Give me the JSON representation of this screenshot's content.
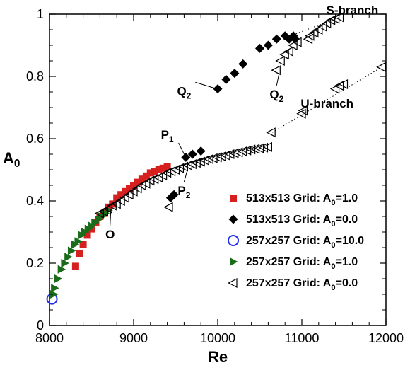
{
  "chart_data": {
    "type": "scatter",
    "title": "",
    "xlabel": "Re",
    "ylabel_main": "A",
    "ylabel_sub": "0",
    "xlim": [
      8000,
      12000
    ],
    "ylim": [
      0,
      1
    ],
    "x_ticks": [
      8000,
      9000,
      10000,
      11000,
      12000
    ],
    "x_tick_labels": [
      "8000",
      "9000",
      "10000",
      "11000",
      "12000"
    ],
    "y_ticks": [
      0,
      0.2,
      0.4,
      0.6,
      0.8,
      1.0
    ],
    "y_tick_labels": [
      "0",
      "0.2",
      "0.4",
      "0.6",
      "0.8",
      "1"
    ],
    "grid": false,
    "legend_position": "bottom-right",
    "series": [
      {
        "name_main": "513x513 Grid: A",
        "name_sub": "0",
        "name_tail": "=1.0",
        "marker": "square",
        "color": "#d62020",
        "points": [
          [
            8310,
            0.19
          ],
          [
            8360,
            0.23
          ],
          [
            8400,
            0.26
          ],
          [
            8450,
            0.29
          ],
          [
            8500,
            0.31
          ],
          [
            8550,
            0.33
          ],
          [
            8600,
            0.35
          ],
          [
            8650,
            0.36
          ],
          [
            8700,
            0.38
          ],
          [
            8750,
            0.39
          ],
          [
            8800,
            0.41
          ],
          [
            8850,
            0.42
          ],
          [
            8900,
            0.43
          ],
          [
            8950,
            0.44
          ],
          [
            9000,
            0.45
          ],
          [
            9050,
            0.46
          ],
          [
            9100,
            0.47
          ],
          [
            9150,
            0.48
          ],
          [
            9200,
            0.49
          ],
          [
            9250,
            0.495
          ],
          [
            9300,
            0.5
          ],
          [
            9350,
            0.505
          ],
          [
            9400,
            0.51
          ]
        ]
      },
      {
        "name_main": "513x513 Grid: A",
        "name_sub": "0",
        "name_tail": "=0.0",
        "marker": "diamond",
        "color": "#000000",
        "points": [
          [
            9440,
            0.41
          ],
          [
            9480,
            0.42
          ],
          [
            9620,
            0.54
          ],
          [
            9700,
            0.55
          ],
          [
            9800,
            0.56
          ],
          [
            10000,
            0.76
          ],
          [
            10100,
            0.79
          ],
          [
            10200,
            0.81
          ],
          [
            10300,
            0.84
          ],
          [
            10500,
            0.89
          ],
          [
            10600,
            0.9
          ],
          [
            10700,
            0.92
          ],
          [
            10800,
            0.93
          ],
          [
            10850,
            0.92
          ],
          [
            10900,
            0.93
          ],
          [
            10920,
            0.92
          ]
        ]
      },
      {
        "name_main": "257x257 Grid: A",
        "name_sub": "0",
        "name_tail": "=10.0",
        "marker": "circle",
        "color": "#1f2ee8",
        "points": [
          [
            8030,
            0.085
          ]
        ]
      },
      {
        "name_main": "257x257 Grid: A",
        "name_sub": "0",
        "name_tail": "=1.0",
        "marker": "triangle-right",
        "color": "#1a6b1a",
        "points": [
          [
            8050,
            0.1
          ],
          [
            8060,
            0.12
          ],
          [
            8100,
            0.15
          ],
          [
            8140,
            0.18
          ],
          [
            8180,
            0.2
          ],
          [
            8220,
            0.22
          ],
          [
            8260,
            0.24
          ],
          [
            8300,
            0.26
          ],
          [
            8340,
            0.27
          ],
          [
            8380,
            0.29
          ],
          [
            8420,
            0.3
          ],
          [
            8460,
            0.31
          ],
          [
            8500,
            0.32
          ],
          [
            8540,
            0.33
          ],
          [
            8580,
            0.34
          ],
          [
            8620,
            0.35
          ],
          [
            8660,
            0.36
          ],
          [
            8700,
            0.37
          ]
        ]
      },
      {
        "name_main": "257x257 Grid: A",
        "name_sub": "0",
        "name_tail": "=0.0",
        "marker": "triangle-left",
        "color": "#000000",
        "points": [
          [
            8600,
            0.36
          ],
          [
            8650,
            0.365
          ],
          [
            8700,
            0.375
          ],
          [
            8750,
            0.385
          ],
          [
            8800,
            0.39
          ],
          [
            8850,
            0.4
          ],
          [
            8900,
            0.41
          ],
          [
            8950,
            0.42
          ],
          [
            9000,
            0.43
          ],
          [
            9050,
            0.44
          ],
          [
            9100,
            0.45
          ],
          [
            9150,
            0.455
          ],
          [
            9200,
            0.465
          ],
          [
            9250,
            0.47
          ],
          [
            9300,
            0.475
          ],
          [
            9350,
            0.482
          ],
          [
            9400,
            0.49
          ],
          [
            9450,
            0.495
          ],
          [
            9500,
            0.5
          ],
          [
            9550,
            0.505
          ],
          [
            9600,
            0.51
          ],
          [
            9650,
            0.514
          ],
          [
            9700,
            0.518
          ],
          [
            9750,
            0.522
          ],
          [
            9800,
            0.526
          ],
          [
            9850,
            0.53
          ],
          [
            9900,
            0.534
          ],
          [
            9950,
            0.537
          ],
          [
            10000,
            0.54
          ],
          [
            10050,
            0.543
          ],
          [
            10100,
            0.546
          ],
          [
            10150,
            0.55
          ],
          [
            10200,
            0.553
          ],
          [
            10250,
            0.556
          ],
          [
            10300,
            0.559
          ],
          [
            10350,
            0.562
          ],
          [
            10400,
            0.565
          ],
          [
            10450,
            0.567
          ],
          [
            10500,
            0.569
          ],
          [
            10550,
            0.571
          ],
          [
            10600,
            0.573
          ],
          [
            9420,
            0.38
          ],
          [
            10640,
            0.62
          ],
          [
            11000,
            0.68
          ],
          [
            11020,
            0.69
          ],
          [
            11400,
            0.76
          ],
          [
            11450,
            0.77
          ],
          [
            11500,
            0.775
          ],
          [
            11950,
            0.83
          ],
          [
            10700,
            0.82
          ],
          [
            10750,
            0.85
          ],
          [
            10800,
            0.87
          ],
          [
            10850,
            0.88
          ],
          [
            10900,
            0.9
          ],
          [
            10950,
            0.91
          ],
          [
            11080,
            0.92
          ],
          [
            11100,
            0.93
          ],
          [
            11150,
            0.94
          ],
          [
            11200,
            0.95
          ],
          [
            11250,
            0.96
          ],
          [
            11300,
            0.97
          ],
          [
            11350,
            0.98
          ],
          [
            11400,
            0.985
          ],
          [
            11450,
            0.99
          ]
        ]
      }
    ],
    "dotted_lines": [
      {
        "points": [
          [
            10650,
            0.62
          ],
          [
            11950,
            0.83
          ]
        ]
      },
      {
        "points": [
          [
            10860,
            0.93
          ],
          [
            11450,
            0.99
          ]
        ]
      }
    ],
    "annotations": [
      {
        "text": "S-branch",
        "sub": "",
        "anchor": [
          11600,
          1.0
        ],
        "target": null
      },
      {
        "text": "U-branch",
        "sub": "",
        "anchor": [
          11300,
          0.7
        ],
        "target": null
      },
      {
        "text": "Q",
        "sub": "2",
        "anchor": [
          9600,
          0.74
        ],
        "target": [
          9990,
          0.76
        ]
      },
      {
        "text": "Q",
        "sub": "2",
        "anchor": [
          10700,
          0.73
        ],
        "target": [
          10730,
          0.81
        ]
      },
      {
        "text": "P",
        "sub": "1",
        "anchor": [
          9400,
          0.6
        ],
        "target": [
          9610,
          0.545
        ]
      },
      {
        "text": "P",
        "sub": "2",
        "anchor": [
          9600,
          0.42
        ],
        "target": [
          9640,
          0.5
        ]
      },
      {
        "text": "O",
        "sub": "",
        "anchor": [
          8720,
          0.28
        ],
        "target": [
          8730,
          0.375
        ]
      }
    ]
  }
}
